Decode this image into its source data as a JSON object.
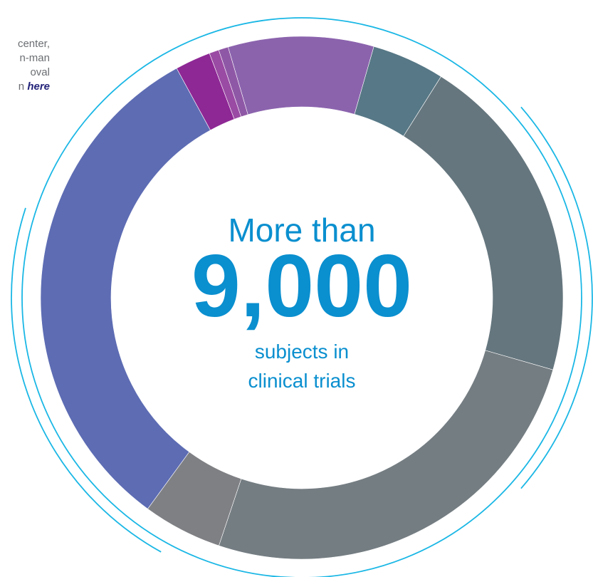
{
  "intro": {
    "lines": [
      "center,",
      "n-man",
      "oval"
    ],
    "last_line_prefix": "n ",
    "link_label": "here"
  },
  "center": {
    "headline_top": "More than",
    "headline_number": "9,000",
    "subline_1": "subjects in",
    "subline_2": "clinical trials"
  },
  "colors": {
    "accent": "#1ab7e5",
    "headline": "#0a8fcf"
  },
  "chart_data": {
    "type": "pie",
    "donut": true,
    "title": "",
    "center_label": "More than 9,000 subjects in clinical trials",
    "slices": [
      {
        "value": 4.5,
        "color": "#577886"
      },
      {
        "value": 20.5,
        "color": "#65767e"
      },
      {
        "value": 25.7,
        "color": "#747d82"
      },
      {
        "value": 4.9,
        "color": "#7f8084"
      },
      {
        "value": 32.0,
        "color": "#5d6cb3"
      },
      {
        "value": 2.2,
        "color": "#8e2895"
      },
      {
        "value": 0.6,
        "color": "#9a4ba3"
      },
      {
        "value": 0.6,
        "color": "#8f58a6"
      },
      {
        "value": 9.0,
        "color": "#8b63ad"
      }
    ]
  }
}
